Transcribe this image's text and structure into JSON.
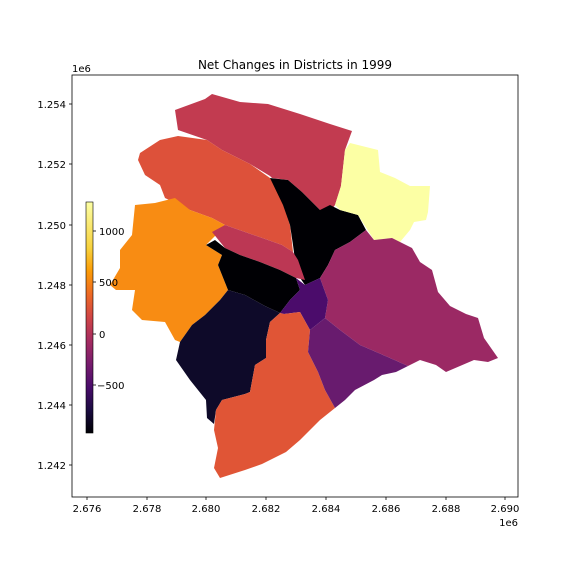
{
  "chart_data": {
    "type": "choropleth",
    "title": "Net Changes in Districts in 1999",
    "x_offset_label": "1e6",
    "y_offset_label": "1e6",
    "x_ticks": [
      "2.676",
      "2.678",
      "2.680",
      "2.682",
      "2.684",
      "2.686",
      "2.688",
      "2.690"
    ],
    "y_ticks": [
      "1.242",
      "1.244",
      "1.246",
      "1.248",
      "1.250",
      "1.252",
      "1.254"
    ],
    "xlim": [
      2.6759,
      2.6907
    ],
    "ylim": [
      1.24095,
      1.25505
    ],
    "colormap": "inferno",
    "colorbar": {
      "ticks": [
        "1000",
        "500",
        "0",
        "−500"
      ],
      "tick_values": [
        1000,
        500,
        0,
        -500
      ],
      "range": [
        -850,
        1400
      ]
    },
    "districts": [
      {
        "id": "north-west",
        "value": 200,
        "color": "#c23b50"
      },
      {
        "id": "west-upper",
        "value": 450,
        "color": "#dd513a"
      },
      {
        "id": "north-center",
        "value": -850,
        "color": "#000004"
      },
      {
        "id": "north-east",
        "value": 1400,
        "color": "#fcffa4"
      },
      {
        "id": "west",
        "value": 850,
        "color": "#f88c13"
      },
      {
        "id": "center-band-upper",
        "value": 150,
        "color": "#bc3754"
      },
      {
        "id": "center-band-lower",
        "value": -850,
        "color": "#000004"
      },
      {
        "id": "east",
        "value": 50,
        "color": "#9b2964"
      },
      {
        "id": "center-small",
        "value": -450,
        "color": "#4b0c6b"
      },
      {
        "id": "south-west-center",
        "value": -750,
        "color": "#0e0a29"
      },
      {
        "id": "south",
        "value": 450,
        "color": "#e05536"
      },
      {
        "id": "south-east",
        "value": -300,
        "color": "#681b6e"
      }
    ]
  }
}
